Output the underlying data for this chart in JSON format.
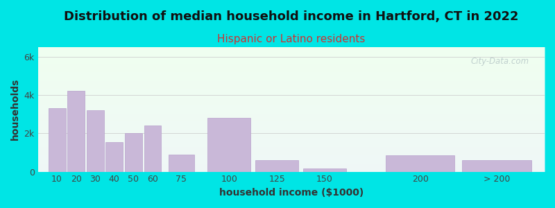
{
  "title": "Distribution of median household income in Hartford, CT in 2022",
  "subtitle": "Hispanic or Latino residents",
  "xlabel": "household income ($1000)",
  "ylabel": "households",
  "bar_labels": [
    "10",
    "20",
    "30",
    "40",
    "50",
    "60",
    "75",
    "100",
    "125",
    "150",
    "200",
    "> 200"
  ],
  "bar_positions": [
    10,
    20,
    30,
    40,
    50,
    60,
    75,
    100,
    125,
    150,
    200,
    240
  ],
  "bar_widths": [
    10,
    10,
    10,
    10,
    10,
    10,
    15,
    25,
    25,
    25,
    40,
    40
  ],
  "bar_values": [
    3300,
    4200,
    3200,
    1550,
    2000,
    2400,
    900,
    2800,
    600,
    150,
    850,
    600
  ],
  "bar_color": "#c9b8d8",
  "bar_edge_color": "#b8a0cc",
  "ytick_labels": [
    "0",
    "2k",
    "4k",
    "6k"
  ],
  "ytick_values": [
    0,
    2000,
    4000,
    6000
  ],
  "ylim": [
    0,
    6500
  ],
  "xlim_min": 0,
  "xlim_max": 265,
  "background_outer": "#00e5e5",
  "background_inner_top": "#f0fff0",
  "background_inner_bottom": "#eef0ff",
  "title_fontsize": 13,
  "subtitle_fontsize": 11,
  "subtitle_color": "#cc3333",
  "axis_label_fontsize": 10,
  "tick_fontsize": 9,
  "watermark_text": "City-Data.com",
  "watermark_color": "#b8c8c8",
  "xtick_positions": [
    10,
    20,
    30,
    40,
    50,
    60,
    75,
    100,
    125,
    150,
    200,
    240
  ],
  "xtick_labels": [
    "10",
    "20",
    "30",
    "40",
    "50",
    "60",
    "75",
    "100",
    "125",
    "150",
    "200",
    "> 200"
  ]
}
